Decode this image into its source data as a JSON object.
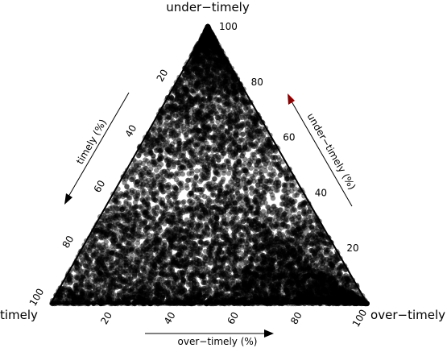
{
  "chart_data": {
    "type": "scatter",
    "subtype": "ternary",
    "vertices": {
      "top": "under−timely",
      "left": "timely",
      "right": "over−timely"
    },
    "axes": {
      "left": {
        "title": "timely (%)",
        "ticks": [
          "20",
          "40",
          "60",
          "80",
          "100"
        ],
        "range": [
          0,
          100
        ]
      },
      "right": {
        "title": "under−timely (%)",
        "ticks": [
          "20",
          "40",
          "60",
          "80",
          "100"
        ],
        "range": [
          0,
          100
        ]
      },
      "bottom": {
        "title": "over−timely (%)",
        "ticks": [
          "20",
          "40",
          "60",
          "80",
          "100"
        ],
        "range": [
          0,
          100
        ]
      }
    },
    "point_color": "#000000",
    "point_alpha": 0.45,
    "approx_point_count": 9000,
    "grid": false,
    "density_summary": [
      {
        "region": "near under-timely vertex (under-timely 80-100%)",
        "density": "very high"
      },
      {
        "region": "timely-over-timely edge (under-timely 0-10%)",
        "density": "very high"
      },
      {
        "region": "interior",
        "density": "high"
      }
    ]
  }
}
